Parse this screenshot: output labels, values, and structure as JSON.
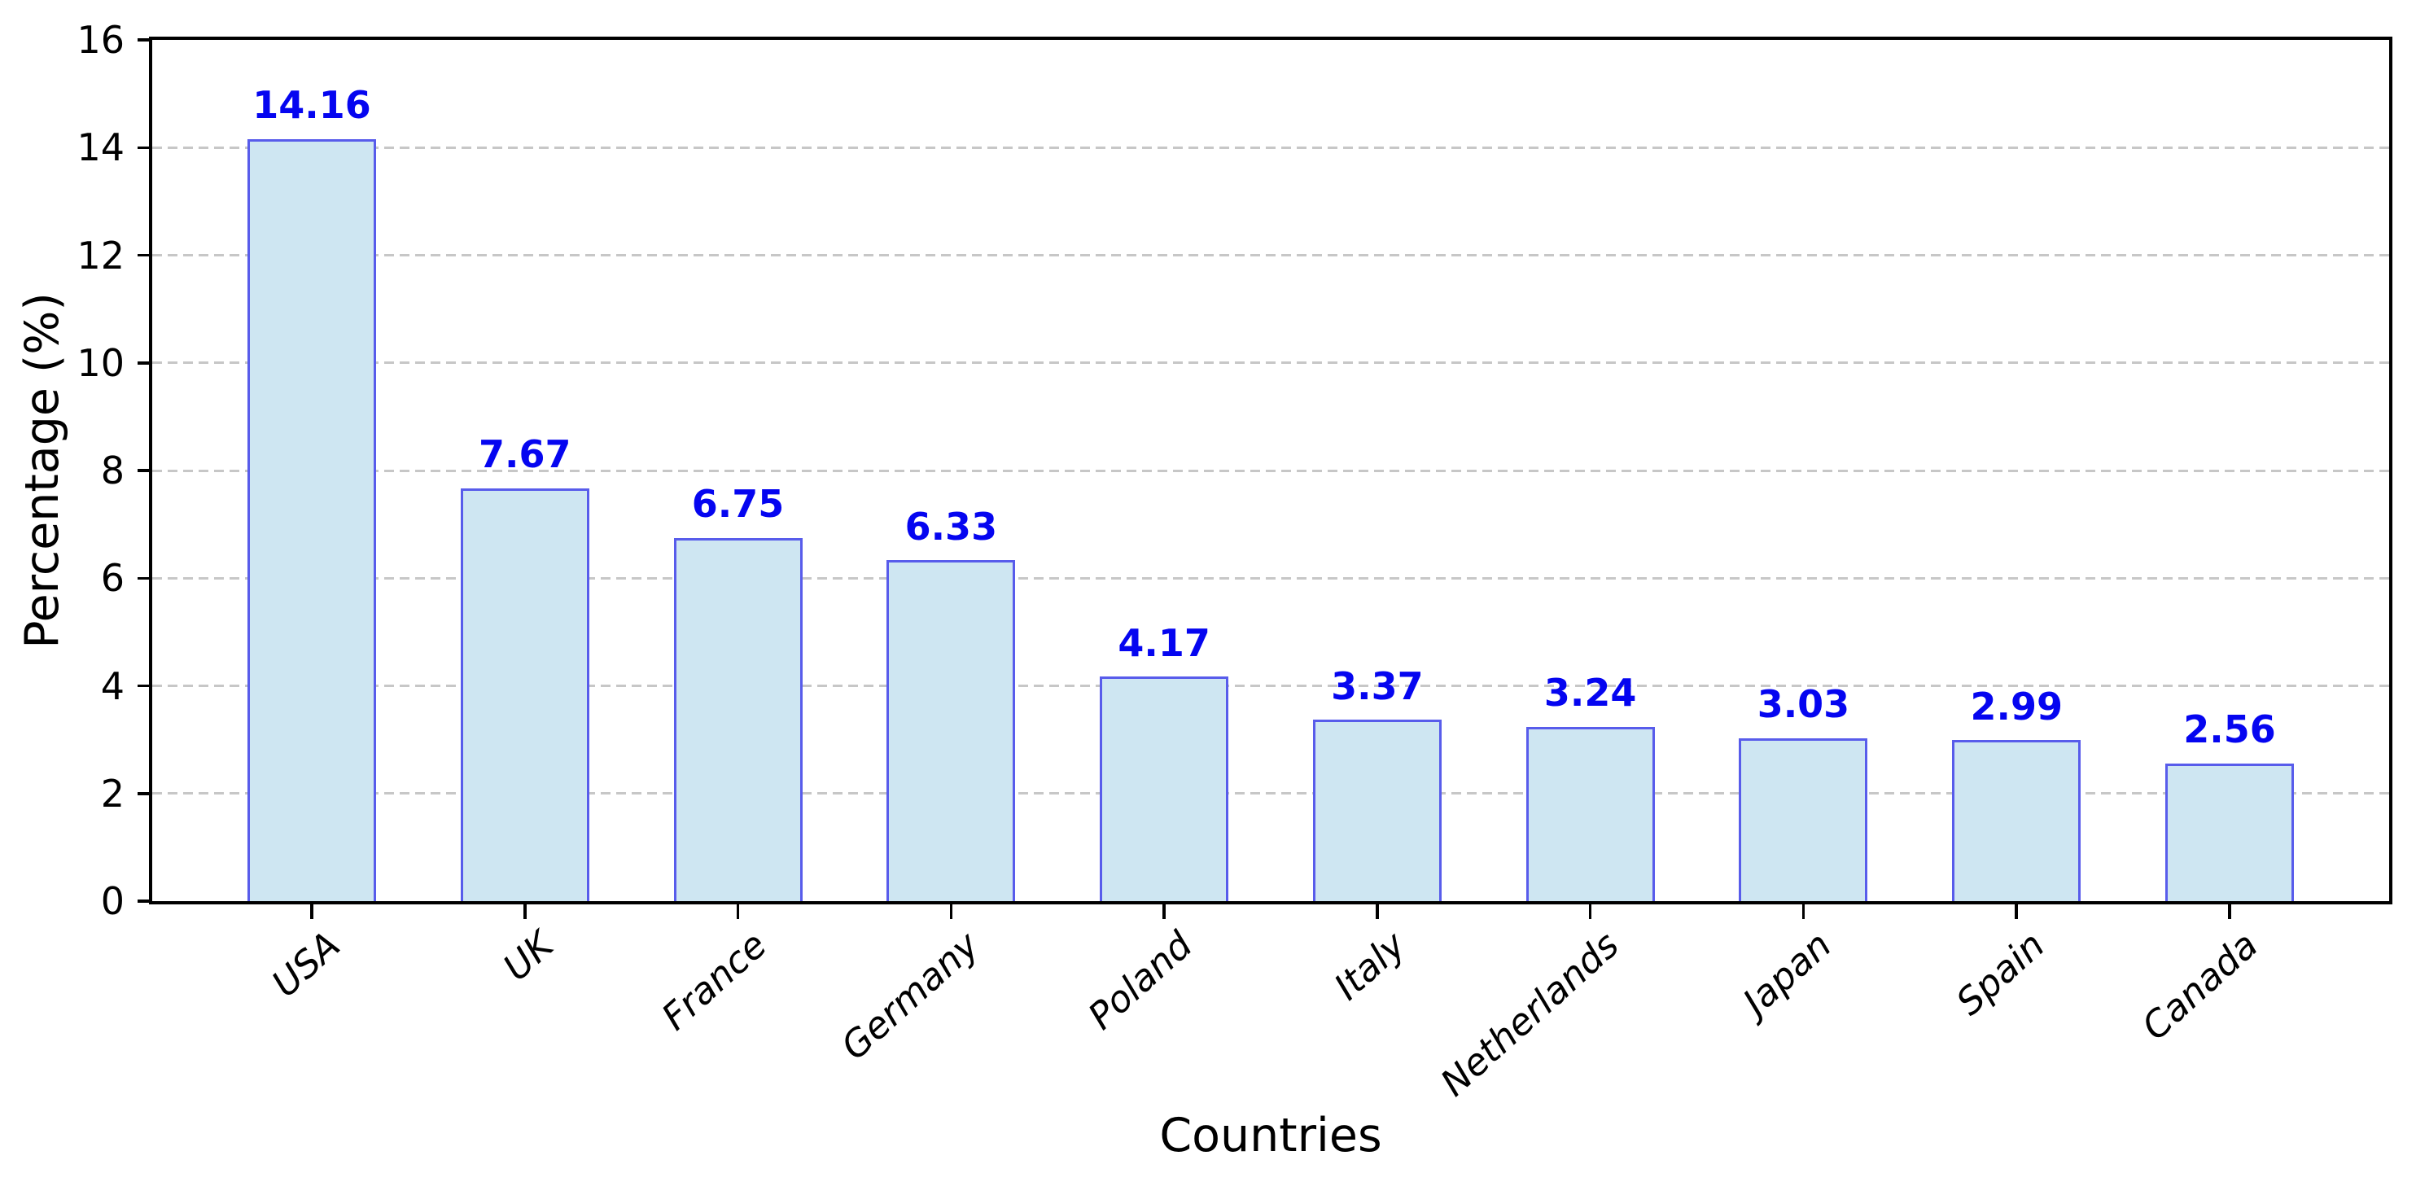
{
  "figure": {
    "background_color": "#ffffff",
    "title": ""
  },
  "chart_data": {
    "type": "bar",
    "title": "",
    "xlabel": "Countries",
    "ylabel": "Percentage (%)",
    "categories": [
      "USA",
      "UK",
      "France",
      "Germany",
      "Poland",
      "Italy",
      "Netherlands",
      "Japan",
      "Spain",
      "Canada"
    ],
    "values": [
      14.16,
      7.67,
      6.75,
      6.33,
      4.17,
      3.37,
      3.24,
      3.03,
      2.99,
      2.56
    ],
    "value_labels": [
      "14.16",
      "7.67",
      "6.75",
      "6.33",
      "4.17",
      "3.37",
      "3.24",
      "3.03",
      "2.99",
      "2.56"
    ],
    "ylim": [
      0,
      16
    ],
    "yticks": [
      0,
      2,
      4,
      6,
      8,
      10,
      12,
      14,
      16
    ],
    "grid": "horizontal-dashed",
    "legend": "none",
    "styles": {
      "bar_fill_color": "#cee6f2",
      "bar_edge_color": "#585ceb",
      "value_label_color": "#0505f0",
      "gridline_color": "#c7c7c7",
      "spine_color": "#000000",
      "tick_label_style_x": "italic",
      "x_label_rotation_deg": 42
    }
  }
}
